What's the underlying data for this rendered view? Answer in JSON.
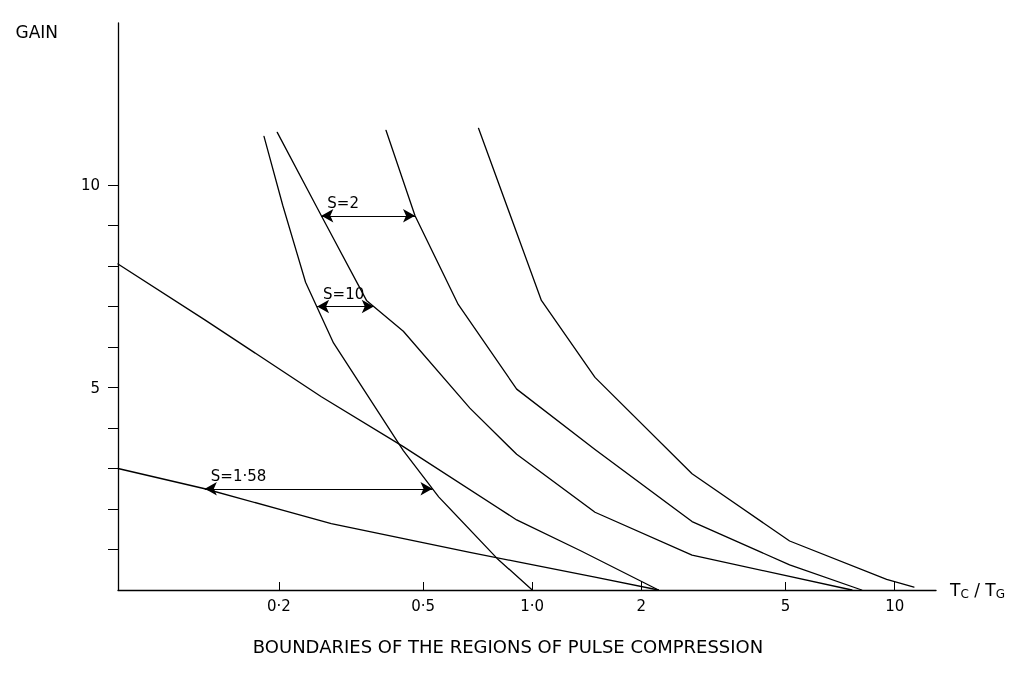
{
  "chart_data": {
    "type": "line",
    "title": "BOUNDARIES OF THE REGIONS OF PULSE COMPRESSION",
    "xlabel": "T$_{C}$ / T$_{G}$",
    "ylabel": "GAIN",
    "log": "x",
    "grid": false,
    "marker": "none",
    "line_style": "solid",
    "xlim": [
      0.072,
      13
    ],
    "xticks": [
      {
        "value": 0.2,
        "label": "0·2"
      },
      {
        "value": 0.5,
        "label": "0·5"
      },
      {
        "value": 1,
        "label": "1·0"
      },
      2,
      5,
      10
    ],
    "ylim": [
      0,
      14
    ],
    "yticks": [
      {
        "value": 1,
        "label": null
      },
      {
        "value": 2,
        "label": null
      },
      {
        "value": 3,
        "label": null
      },
      {
        "value": 4,
        "label": null
      },
      5,
      {
        "value": 6,
        "label": null
      },
      {
        "value": 7,
        "label": null
      },
      {
        "value": 8,
        "label": null
      },
      {
        "value": 9,
        "label": null
      },
      10
    ],
    "series": [
      {
        "color": "#000000",
        "x": [
          0.072,
          0.125,
          0.279,
          0.673,
          0.906,
          1.49,
          2.23
        ],
        "values": [
          3.0,
          2.5,
          1.64,
          0.93,
          0.7,
          0.32,
          0
        ]
      },
      {
        "color": "#000000",
        "x": [
          0.072,
          0.125,
          0.262,
          0.441,
          0.906,
          1.36,
          2.23
        ],
        "values": [
          8.05,
          6.67,
          4.77,
          3.54,
          1.73,
          0.97,
          0
        ]
      },
      {
        "color": "#000000",
        "x": [
          0.182,
          0.205,
          0.237,
          0.283,
          0.441,
          0.552,
          0.8,
          1.0
        ],
        "values": [
          11.2,
          9.5,
          7.6,
          6.1,
          3.44,
          2.3,
          0.78,
          0
        ]
      },
      {
        "color": "#000000",
        "x": [
          0.198,
          0.262,
          0.349,
          0.441,
          0.673,
          0.906,
          1.49,
          2.76,
          7.62
        ],
        "values": [
          11.3,
          9.24,
          7.15,
          6.39,
          4.49,
          3.35,
          1.92,
          0.86,
          0
        ]
      },
      {
        "color": "#000000",
        "x": [
          0.395,
          0.475,
          0.625,
          0.906,
          1.49,
          2.76,
          5.13,
          8.11
        ],
        "values": [
          11.35,
          9.24,
          7.05,
          4.96,
          3.47,
          1.69,
          0.62,
          0
        ]
      },
      {
        "color": "#000000",
        "x": [
          0.711,
          1.06,
          1.49,
          2.76,
          5.13,
          9.5,
          11.3
        ],
        "values": [
          11.4,
          7.15,
          5.25,
          2.87,
          1.21,
          0.26,
          0.07
        ]
      }
    ],
    "annotations": [
      {
        "text": "S=2",
        "x": 0.262,
        "y": 9.24
      },
      {
        "text": "S=10",
        "x": 0.255,
        "y": 7.0
      },
      {
        "text": "S=1·58",
        "x": 0.125,
        "y": 2.5
      }
    ]
  }
}
